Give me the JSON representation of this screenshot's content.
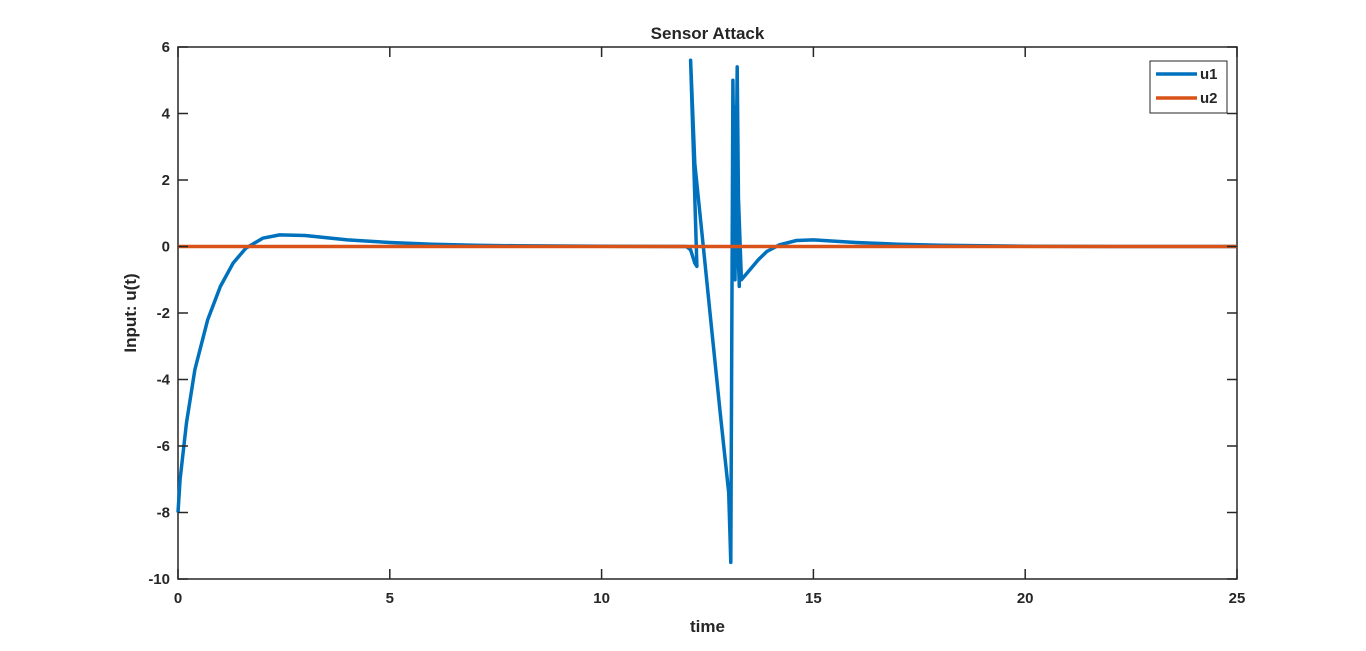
{
  "chart_data": {
    "type": "line",
    "title": "Sensor Attack",
    "xlabel": "time",
    "ylabel": "Input: u(t)",
    "xlim": [
      0,
      25
    ],
    "ylim": [
      -10,
      6
    ],
    "xticks": [
      0,
      5,
      10,
      15,
      20,
      25
    ],
    "yticks": [
      -10,
      -8,
      -6,
      -4,
      -2,
      0,
      2,
      4,
      6
    ],
    "grid": false,
    "legend_position": "top-right",
    "series": [
      {
        "name": "u1",
        "color": "#0072BD",
        "x": [
          0,
          0.05,
          0.2,
          0.4,
          0.7,
          1.0,
          1.3,
          1.6,
          2.0,
          2.4,
          3.0,
          4.0,
          5.0,
          6.0,
          7.0,
          8.0,
          10.0,
          12.0,
          12.1,
          12.15,
          12.2,
          12.25,
          12.1,
          12.2,
          12.4,
          12.6,
          12.8,
          13.0,
          13.05,
          13.1,
          13.15,
          13.2,
          13.25,
          13.1,
          13.2,
          13.3,
          13.5,
          13.7,
          13.9,
          14.2,
          14.6,
          15.0,
          16.0,
          17.0,
          18.0,
          20.0,
          22.0,
          25.0
        ],
        "y": [
          -8.0,
          -7.0,
          -5.3,
          -3.7,
          -2.2,
          -1.2,
          -0.5,
          -0.05,
          0.25,
          0.35,
          0.33,
          0.2,
          0.12,
          0.07,
          0.04,
          0.02,
          0.01,
          0.0,
          -0.1,
          -0.3,
          -0.5,
          -0.6,
          5.6,
          2.5,
          0.0,
          -2.5,
          -5.0,
          -7.4,
          -9.5,
          5.0,
          -1.0,
          5.4,
          -1.2,
          4.4,
          2.5,
          -1.0,
          -0.7,
          -0.4,
          -0.15,
          0.05,
          0.18,
          0.2,
          0.12,
          0.07,
          0.04,
          0.01,
          0.0,
          0.0
        ]
      },
      {
        "name": "u2",
        "color": "#D95319",
        "x": [
          0,
          25
        ],
        "y": [
          0,
          0
        ]
      }
    ]
  }
}
